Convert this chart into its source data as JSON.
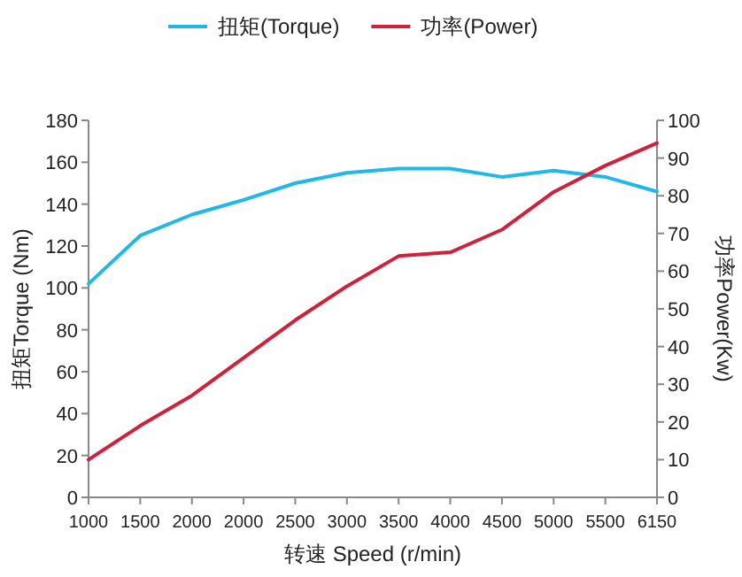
{
  "chart_data": {
    "type": "line",
    "categories": [
      "1000",
      "1500",
      "2000",
      "2000",
      "2500",
      "3000",
      "3500",
      "4000",
      "4500",
      "5000",
      "5500",
      "6150"
    ],
    "xlabel": "转速 Speed (r/min)",
    "ylabel": "扭矩Torque (Nm)",
    "y2label": "功率Power(Kw)",
    "ylim": [
      0,
      180
    ],
    "yticks": [
      0,
      20,
      40,
      60,
      80,
      100,
      120,
      140,
      160,
      180
    ],
    "y2lim": [
      0,
      100
    ],
    "y2ticks": [
      0,
      10,
      20,
      30,
      40,
      50,
      60,
      70,
      80,
      90,
      100
    ],
    "legend": "top",
    "grid": false,
    "marker": "none",
    "line_style": "solid",
    "series": [
      {
        "name": "扭矩(Torque)",
        "color": "#1fb8e8",
        "values": [
          102,
          125,
          135,
          142,
          150,
          155,
          157,
          157,
          153,
          156,
          153,
          146
        ]
      },
      {
        "name": "功率(Power)",
        "color": "#d0203a",
        "axis": "y2",
        "values": [
          10,
          19,
          27,
          37,
          47,
          56,
          64,
          65,
          71,
          81,
          88,
          94
        ]
      }
    ]
  }
}
